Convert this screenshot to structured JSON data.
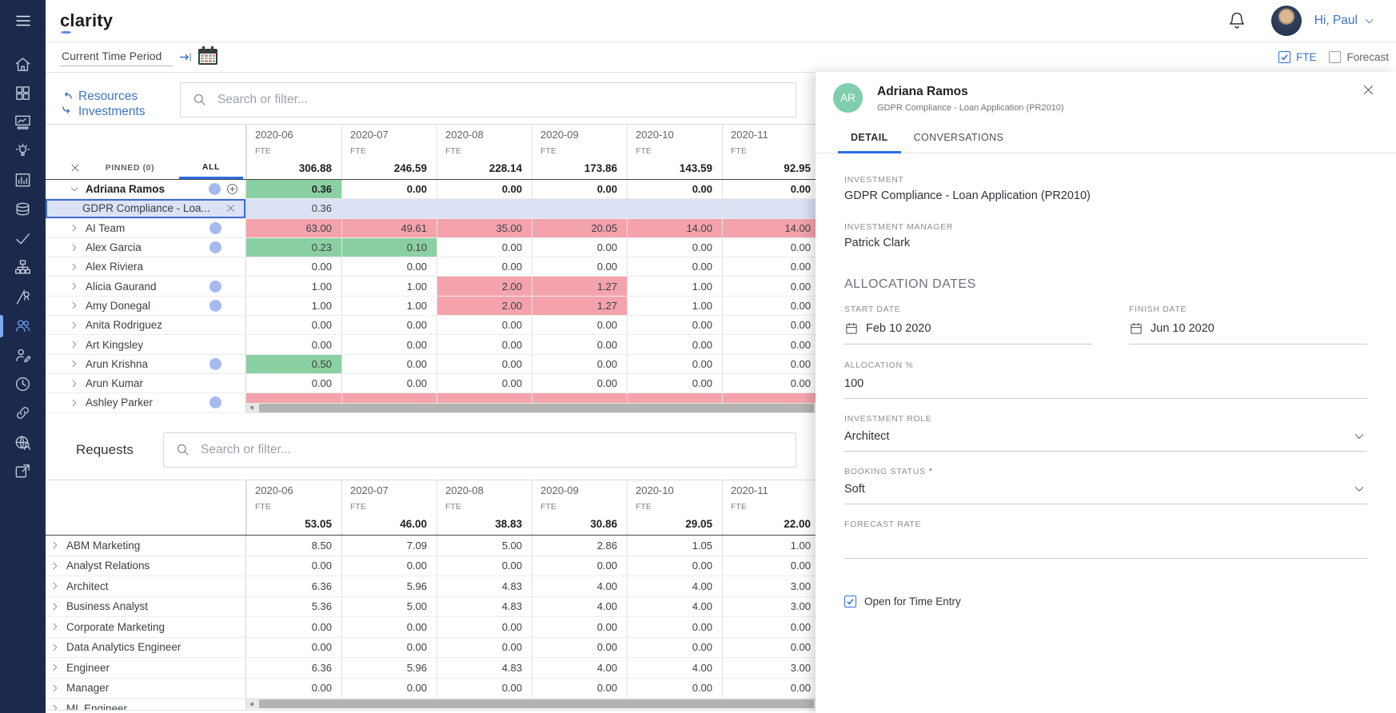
{
  "header": {
    "logo": "clarity",
    "greeting": "Hi, Paul"
  },
  "toolbar": {
    "time_period": "Current Time Period",
    "fte": {
      "label": "FTE",
      "checked": true
    },
    "forecast": {
      "label": "Forecast",
      "checked": false
    }
  },
  "sidebar": {
    "items": [
      {
        "name": "home"
      },
      {
        "name": "tiles"
      },
      {
        "name": "dashboard"
      },
      {
        "name": "ideas"
      },
      {
        "name": "reports"
      },
      {
        "name": "data"
      },
      {
        "name": "tasks"
      },
      {
        "name": "hierarchy"
      },
      {
        "name": "roadmap"
      },
      {
        "name": "resources",
        "active": true
      },
      {
        "name": "resource-edit"
      },
      {
        "name": "time"
      },
      {
        "name": "links"
      },
      {
        "name": "community"
      },
      {
        "name": "external"
      }
    ]
  },
  "resources": {
    "toggle_lines": [
      "Resources",
      "Investments"
    ],
    "search_placeholder": "Search or filter...",
    "pinned_label": "PINNED (0)",
    "all_label": "ALL",
    "months": [
      "2020-06",
      "2020-07",
      "2020-08",
      "2020-09",
      "2020-10",
      "2020-11"
    ],
    "unit_label": "FTE",
    "totals": [
      "306.88",
      "246.59",
      "228.14",
      "173.86",
      "143.59",
      "92.95"
    ],
    "rows": [
      {
        "name": "Adriana Ramos",
        "type": "parent",
        "expanded": true,
        "bold": true,
        "dot": true,
        "add_button": true,
        "cells": [
          {
            "v": "0.36",
            "bg": "green"
          },
          {
            "v": "0.00"
          },
          {
            "v": "0.00"
          },
          {
            "v": "0.00"
          },
          {
            "v": "0.00"
          },
          {
            "v": "0.00"
          }
        ]
      },
      {
        "name": "GDPR Compliance - Loa...",
        "type": "child",
        "selected": true,
        "close_button": true,
        "cells": [
          {
            "v": "0.36"
          },
          {
            "v": ""
          },
          {
            "v": ""
          },
          {
            "v": ""
          },
          {
            "v": ""
          },
          {
            "v": ""
          }
        ]
      },
      {
        "name": "AI Team",
        "type": "parent",
        "dot": true,
        "cells": [
          {
            "v": "63.00",
            "bg": "red"
          },
          {
            "v": "49.61",
            "bg": "red"
          },
          {
            "v": "35.00",
            "bg": "red"
          },
          {
            "v": "20.05",
            "bg": "red"
          },
          {
            "v": "14.00",
            "bg": "red"
          },
          {
            "v": "14.00",
            "bg": "red"
          }
        ]
      },
      {
        "name": "Alex Garcia",
        "type": "parent",
        "dot": true,
        "cells": [
          {
            "v": "0.23",
            "bg": "green"
          },
          {
            "v": "0.10",
            "bg": "green"
          },
          {
            "v": "0.00"
          },
          {
            "v": "0.00"
          },
          {
            "v": "0.00"
          },
          {
            "v": "0.00"
          }
        ]
      },
      {
        "name": "Alex Riviera",
        "type": "parent",
        "cells": [
          {
            "v": "0.00"
          },
          {
            "v": "0.00"
          },
          {
            "v": "0.00"
          },
          {
            "v": "0.00"
          },
          {
            "v": "0.00"
          },
          {
            "v": "0.00"
          }
        ]
      },
      {
        "name": "Alicia Gaurand",
        "type": "parent",
        "dot": true,
        "cells": [
          {
            "v": "1.00"
          },
          {
            "v": "1.00"
          },
          {
            "v": "2.00",
            "bg": "red"
          },
          {
            "v": "1.27",
            "bg": "red"
          },
          {
            "v": "1.00"
          },
          {
            "v": "0.00"
          }
        ]
      },
      {
        "name": "Amy Donegal",
        "type": "parent",
        "dot": true,
        "cells": [
          {
            "v": "1.00"
          },
          {
            "v": "1.00"
          },
          {
            "v": "2.00",
            "bg": "red"
          },
          {
            "v": "1.27",
            "bg": "red"
          },
          {
            "v": "1.00"
          },
          {
            "v": "0.00"
          }
        ]
      },
      {
        "name": "Anita Rodriguez",
        "type": "parent",
        "cells": [
          {
            "v": "0.00"
          },
          {
            "v": "0.00"
          },
          {
            "v": "0.00"
          },
          {
            "v": "0.00"
          },
          {
            "v": "0.00"
          },
          {
            "v": "0.00"
          }
        ]
      },
      {
        "name": "Art Kingsley",
        "type": "parent",
        "cells": [
          {
            "v": "0.00"
          },
          {
            "v": "0.00"
          },
          {
            "v": "0.00"
          },
          {
            "v": "0.00"
          },
          {
            "v": "0.00"
          },
          {
            "v": "0.00"
          }
        ]
      },
      {
        "name": "Arun Krishna",
        "type": "parent",
        "dot": true,
        "cells": [
          {
            "v": "0.50",
            "bg": "green"
          },
          {
            "v": "0.00"
          },
          {
            "v": "0.00"
          },
          {
            "v": "0.00"
          },
          {
            "v": "0.00"
          },
          {
            "v": "0.00"
          }
        ]
      },
      {
        "name": "Arun Kumar",
        "type": "parent",
        "cells": [
          {
            "v": "0.00"
          },
          {
            "v": "0.00"
          },
          {
            "v": "0.00"
          },
          {
            "v": "0.00"
          },
          {
            "v": "0.00"
          },
          {
            "v": "0.00"
          }
        ]
      },
      {
        "name": "Ashley Parker",
        "type": "parent",
        "dot": true,
        "clipped": true,
        "cells": [
          {
            "v": "",
            "bg": "red"
          },
          {
            "v": "",
            "bg": "red"
          },
          {
            "v": "",
            "bg": "red"
          },
          {
            "v": "",
            "bg": "red"
          },
          {
            "v": "",
            "bg": "red"
          },
          {
            "v": "",
            "bg": "red"
          }
        ]
      }
    ]
  },
  "requests": {
    "title": "Requests",
    "search_placeholder": "Search or filter...",
    "months": [
      "2020-06",
      "2020-07",
      "2020-08",
      "2020-09",
      "2020-10",
      "2020-11"
    ],
    "unit_label": "FTE",
    "totals": [
      "53.05",
      "46.00",
      "38.83",
      "30.86",
      "29.05",
      "22.00"
    ],
    "rows": [
      {
        "name": "ABM Marketing",
        "cells": [
          "8.50",
          "7.09",
          "5.00",
          "2.86",
          "1.05",
          "1.00"
        ]
      },
      {
        "name": "Analyst Relations",
        "cells": [
          "0.00",
          "0.00",
          "0.00",
          "0.00",
          "0.00",
          "0.00"
        ]
      },
      {
        "name": "Architect",
        "cells": [
          "6.36",
          "5.96",
          "4.83",
          "4.00",
          "4.00",
          "3.00"
        ]
      },
      {
        "name": "Business Analyst",
        "cells": [
          "5.36",
          "5.00",
          "4.83",
          "4.00",
          "4.00",
          "3.00"
        ]
      },
      {
        "name": "Corporate Marketing",
        "cells": [
          "0.00",
          "0.00",
          "0.00",
          "0.00",
          "0.00",
          "0.00"
        ]
      },
      {
        "name": "Data Analytics Engineer",
        "cells": [
          "0.00",
          "0.00",
          "0.00",
          "0.00",
          "0.00",
          "0.00"
        ]
      },
      {
        "name": "Engineer",
        "cells": [
          "6.36",
          "5.96",
          "4.83",
          "4.00",
          "4.00",
          "3.00"
        ]
      },
      {
        "name": "Manager",
        "cells": [
          "0.00",
          "0.00",
          "0.00",
          "0.00",
          "0.00",
          "0.00"
        ]
      },
      {
        "name": "ML Engineer",
        "clipped": true,
        "cells": [
          "",
          "",
          "",
          "",
          "",
          ""
        ]
      }
    ]
  },
  "detail_panel": {
    "initials": "AR",
    "name": "Adriana Ramos",
    "subtitle": "GDPR Compliance - Loan Application (PR2010)",
    "tabs": [
      {
        "label": "DETAIL",
        "active": true
      },
      {
        "label": "CONVERSATIONS",
        "active": false
      }
    ],
    "fields": {
      "investment": {
        "label": "INVESTMENT",
        "value": "GDPR Compliance - Loan Application (PR2010)"
      },
      "investment_manager": {
        "label": "INVESTMENT MANAGER",
        "value": "Patrick Clark"
      },
      "section_title": "ALLOCATION DATES",
      "start_date": {
        "label": "START DATE",
        "value": "Feb 10 2020"
      },
      "finish_date": {
        "label": "FINISH DATE",
        "value": "Jun 10 2020"
      },
      "allocation_pct": {
        "label": "ALLOCATION %",
        "value": "100"
      },
      "investment_role": {
        "label": "INVESTMENT ROLE",
        "value": "Architect"
      },
      "booking_status": {
        "label": "BOOKING STATUS",
        "value": "Soft",
        "required_mark": "*"
      },
      "forecast_rate": {
        "label": "FORECAST RATE",
        "value": ""
      },
      "time_entry": {
        "label": "Open for Time Entry",
        "checked": true
      }
    }
  },
  "colors": {
    "sidebar_bg": "#1b2a4c",
    "accent_blue": "#3f73c8",
    "tab_underline": "#2e6de4",
    "cell_red": "#f4a3ad",
    "cell_green": "#8bd0a2",
    "selected_row": "#dbe2f6",
    "dot": "#a7baef"
  }
}
